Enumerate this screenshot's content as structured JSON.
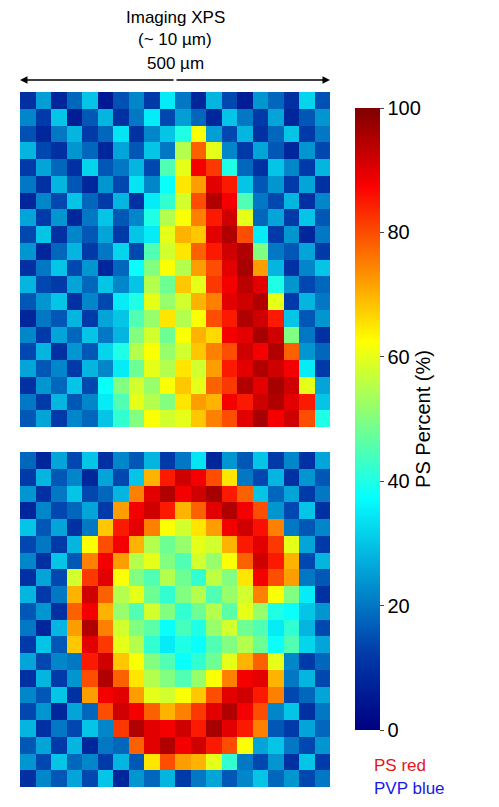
{
  "chart_data": {
    "type": "heatmap",
    "title": "Imaging XPS",
    "subtitle": "(~ 10 µm)",
    "tick_labels": false,
    "colorbar_title": "PS Percent (%)",
    "color_range": [
      0,
      100
    ],
    "color_ticks": [
      0,
      20,
      40,
      60,
      80,
      100
    ],
    "annotations": [
      {
        "text": "500 µm"
      },
      {
        "text": "PS red",
        "color": "#e8141c"
      },
      {
        "text": "PVP blue",
        "color": "#1a1ae6"
      }
    ],
    "panels": [
      {
        "cells": [
          [
            10,
            25,
            8,
            18,
            30,
            5,
            15,
            22,
            12,
            35,
            20,
            8,
            28,
            14,
            6,
            24,
            18,
            10,
            32,
            15
          ],
          [
            22,
            12,
            30,
            6,
            16,
            28,
            10,
            20,
            35,
            14,
            25,
            18,
            8,
            30,
            20,
            12,
            26,
            8,
            16,
            24
          ],
          [
            15,
            8,
            20,
            28,
            12,
            18,
            34,
            10,
            22,
            30,
            40,
            62,
            25,
            14,
            28,
            10,
            18,
            30,
            12,
            20
          ],
          [
            28,
            14,
            10,
            24,
            18,
            8,
            26,
            16,
            30,
            20,
            55,
            78,
            60,
            22,
            12,
            26,
            16,
            8,
            24,
            14
          ],
          [
            12,
            26,
            18,
            10,
            32,
            16,
            20,
            28,
            14,
            45,
            60,
            88,
            82,
            40,
            18,
            10,
            30,
            22,
            12,
            28
          ],
          [
            20,
            10,
            28,
            16,
            8,
            24,
            14,
            34,
            22,
            38,
            65,
            72,
            90,
            85,
            30,
            16,
            24,
            12,
            26,
            10
          ],
          [
            8,
            22,
            14,
            30,
            18,
            12,
            28,
            10,
            35,
            42,
            58,
            80,
            95,
            88,
            45,
            20,
            14,
            28,
            10,
            22
          ],
          [
            26,
            12,
            24,
            8,
            20,
            30,
            16,
            22,
            40,
            55,
            62,
            75,
            85,
            92,
            60,
            18,
            26,
            12,
            30,
            16
          ],
          [
            14,
            30,
            10,
            22,
            16,
            26,
            12,
            30,
            35,
            60,
            70,
            68,
            90,
            95,
            80,
            35,
            12,
            24,
            8,
            20
          ],
          [
            24,
            8,
            18,
            28,
            12,
            20,
            32,
            14,
            45,
            58,
            65,
            78,
            85,
            92,
            95,
            50,
            20,
            16,
            26,
            12
          ],
          [
            10,
            20,
            30,
            14,
            24,
            8,
            18,
            38,
            50,
            62,
            55,
            72,
            80,
            90,
            96,
            72,
            28,
            10,
            22,
            30
          ],
          [
            28,
            14,
            12,
            26,
            18,
            30,
            22,
            30,
            55,
            48,
            68,
            60,
            82,
            88,
            94,
            90,
            40,
            24,
            14,
            18
          ],
          [
            16,
            24,
            30,
            10,
            22,
            14,
            35,
            40,
            60,
            52,
            58,
            70,
            75,
            90,
            92,
            95,
            60,
            12,
            28,
            20
          ],
          [
            8,
            20,
            16,
            28,
            12,
            26,
            30,
            45,
            52,
            65,
            55,
            62,
            80,
            85,
            95,
            92,
            85,
            30,
            16,
            24
          ],
          [
            22,
            12,
            26,
            18,
            30,
            20,
            28,
            50,
            58,
            48,
            62,
            70,
            66,
            88,
            90,
            96,
            92,
            50,
            20,
            10
          ],
          [
            14,
            28,
            10,
            24,
            16,
            32,
            40,
            55,
            62,
            52,
            58,
            68,
            75,
            80,
            92,
            88,
            95,
            78,
            24,
            18
          ],
          [
            26,
            16,
            22,
            12,
            28,
            22,
            35,
            48,
            60,
            55,
            65,
            58,
            72,
            85,
            90,
            95,
            92,
            88,
            35,
            12
          ],
          [
            10,
            24,
            18,
            30,
            14,
            38,
            50,
            58,
            52,
            62,
            68,
            60,
            78,
            82,
            95,
            90,
            96,
            92,
            60,
            26
          ],
          [
            20,
            12,
            28,
            16,
            22,
            35,
            45,
            60,
            55,
            50,
            65,
            72,
            70,
            88,
            85,
            92,
            95,
            90,
            85,
            30
          ],
          [
            16,
            26,
            12,
            22,
            18,
            30,
            42,
            50,
            62,
            58,
            60,
            68,
            75,
            80,
            90,
            96,
            88,
            92,
            80,
            40
          ]
        ]
      },
      {
        "cells": [
          [
            18,
            8,
            26,
            14,
            30,
            10,
            22,
            16,
            28,
            12,
            20,
            34,
            8,
            24,
            16,
            30,
            12,
            22,
            10,
            26
          ],
          [
            12,
            28,
            16,
            22,
            8,
            26,
            14,
            30,
            70,
            85,
            92,
            88,
            80,
            65,
            20,
            14,
            28,
            10,
            24,
            16
          ],
          [
            24,
            10,
            20,
            30,
            14,
            18,
            28,
            75,
            90,
            95,
            88,
            92,
            96,
            85,
            78,
            30,
            18,
            26,
            12,
            20
          ],
          [
            8,
            22,
            14,
            18,
            26,
            12,
            72,
            88,
            92,
            85,
            70,
            78,
            90,
            95,
            88,
            80,
            24,
            14,
            30,
            10
          ],
          [
            30,
            16,
            26,
            10,
            20,
            68,
            85,
            90,
            75,
            62,
            58,
            65,
            72,
            88,
            92,
            86,
            75,
            20,
            16,
            22
          ],
          [
            14,
            20,
            12,
            28,
            62,
            80,
            88,
            70,
            55,
            48,
            52,
            60,
            58,
            70,
            85,
            90,
            82,
            60,
            26,
            12
          ],
          [
            22,
            10,
            30,
            16,
            75,
            88,
            72,
            55,
            60,
            50,
            45,
            58,
            52,
            62,
            78,
            92,
            85,
            70,
            14,
            28
          ],
          [
            10,
            26,
            14,
            58,
            82,
            90,
            62,
            50,
            45,
            55,
            48,
            42,
            56,
            50,
            65,
            88,
            80,
            72,
            20,
            16
          ],
          [
            28,
            12,
            20,
            70,
            92,
            78,
            55,
            60,
            48,
            42,
            50,
            55,
            45,
            52,
            58,
            75,
            62,
            50,
            35,
            10
          ],
          [
            16,
            24,
            10,
            78,
            88,
            70,
            52,
            45,
            58,
            50,
            42,
            48,
            55,
            46,
            60,
            52,
            40,
            38,
            30,
            24
          ],
          [
            20,
            8,
            28,
            72,
            95,
            75,
            58,
            50,
            46,
            38,
            44,
            40,
            52,
            58,
            48,
            45,
            35,
            42,
            28,
            14
          ],
          [
            12,
            30,
            16,
            68,
            90,
            82,
            60,
            55,
            42,
            35,
            40,
            38,
            45,
            50,
            55,
            48,
            38,
            45,
            32,
            26
          ],
          [
            26,
            14,
            22,
            20,
            85,
            92,
            68,
            62,
            50,
            45,
            38,
            42,
            48,
            60,
            70,
            78,
            60,
            22,
            12,
            18
          ],
          [
            10,
            28,
            12,
            24,
            80,
            95,
            78,
            65,
            55,
            50,
            45,
            52,
            62,
            75,
            88,
            90,
            70,
            20,
            28,
            14
          ],
          [
            22,
            16,
            30,
            10,
            72,
            88,
            90,
            72,
            60,
            58,
            62,
            68,
            80,
            90,
            92,
            85,
            75,
            14,
            18,
            26
          ],
          [
            14,
            24,
            8,
            26,
            18,
            80,
            92,
            88,
            78,
            70,
            75,
            82,
            90,
            95,
            88,
            80,
            22,
            30,
            10,
            20
          ],
          [
            28,
            10,
            20,
            14,
            30,
            22,
            82,
            95,
            90,
            88,
            92,
            85,
            96,
            90,
            85,
            75,
            16,
            12,
            26,
            18
          ],
          [
            16,
            26,
            12,
            28,
            8,
            20,
            18,
            78,
            90,
            95,
            88,
            92,
            85,
            80,
            62,
            26,
            30,
            20,
            14,
            24
          ],
          [
            24,
            14,
            30,
            18,
            22,
            12,
            28,
            16,
            65,
            80,
            72,
            70,
            60,
            42,
            20,
            14,
            24,
            10,
            30,
            12
          ],
          [
            10,
            22,
            16,
            26,
            14,
            30,
            8,
            24,
            18,
            28,
            12,
            20,
            26,
            16,
            22,
            30,
            18,
            24,
            14,
            20
          ]
        ]
      }
    ]
  }
}
